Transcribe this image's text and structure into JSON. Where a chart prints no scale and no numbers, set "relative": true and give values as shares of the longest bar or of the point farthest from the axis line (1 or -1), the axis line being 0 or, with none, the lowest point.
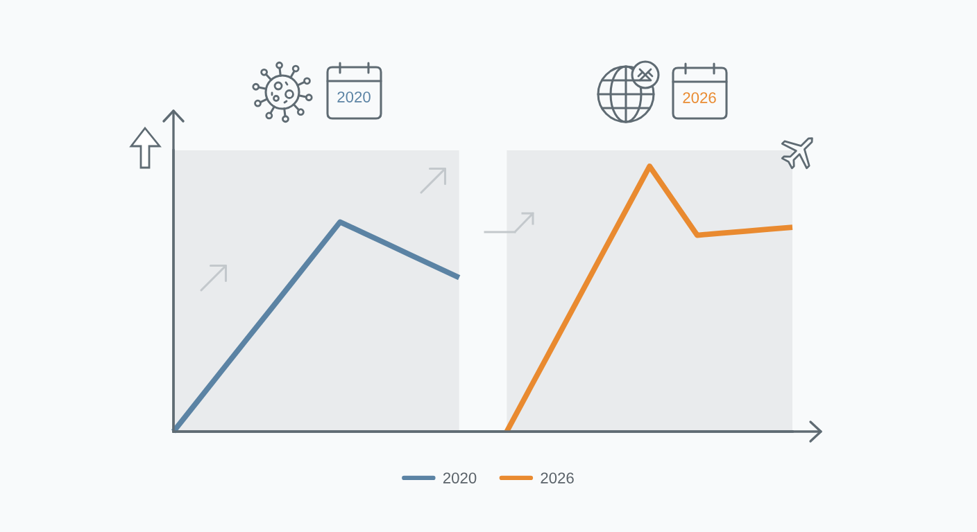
{
  "chart_data": {
    "type": "line",
    "categories": [
      null,
      null,
      null,
      null,
      null,
      null,
      null,
      null,
      null,
      null,
      null,
      null,
      null,
      null,
      null,
      null,
      null,
      null,
      null,
      null,
      null,
      null,
      null,
      null,
      null,
      null,
      null
    ],
    "relative": true,
    "series": [
      {
        "name": "2020",
        "color": "#5b83a4",
        "values": [
          0,
          0.113,
          0.226,
          0.339,
          0.451,
          0.564,
          0.677,
          0.79,
          0.748,
          0.706,
          0.664,
          0.622,
          0.58,
          null,
          null,
          null,
          null,
          null,
          null,
          null,
          null,
          null,
          null,
          null,
          null,
          null,
          null
        ]
      },
      {
        "name": "2026",
        "color": "#e98a30",
        "values": [
          null,
          null,
          null,
          null,
          null,
          null,
          null,
          null,
          null,
          null,
          null,
          null,
          null,
          null,
          0,
          0.167,
          0.333,
          0.5,
          0.667,
          0.833,
          1,
          0.87,
          0.74,
          0.748,
          0.755,
          0.763,
          0.77
        ]
      }
    ],
    "annotations": [
      "2020",
      "2026"
    ],
    "legend": "bottom",
    "tick_labels": false
  }
}
